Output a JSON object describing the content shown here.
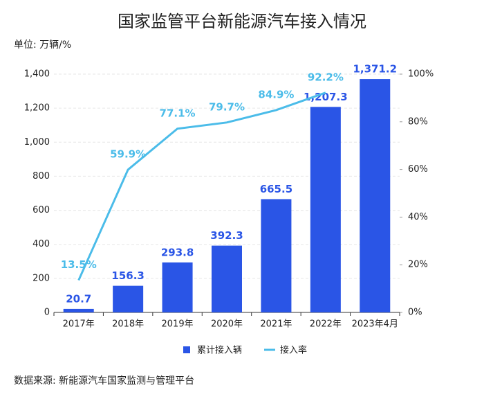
{
  "chart_data": {
    "type": "bar_line",
    "title": "国家监管平台新能源汽车接入情况",
    "unit_label": "单位: 万辆/%",
    "source": "数据来源: 新能源汽车国家监测与管理平台",
    "categories": [
      "2017年",
      "2018年",
      "2019年",
      "2020年",
      "2021年",
      "2022年",
      "2023年4月"
    ],
    "series": [
      {
        "name": "累计接入辆",
        "type": "bar",
        "color": "#2a55e6",
        "values": [
          20.7,
          156.3,
          293.8,
          392.3,
          665.5,
          1207.3,
          1371.2
        ],
        "value_labels": [
          "20.7",
          "156.3",
          "293.8",
          "392.3",
          "665.5",
          "1,207.3",
          "1,371.2"
        ]
      },
      {
        "name": "接入率",
        "type": "line",
        "axis": "y2",
        "color": "#4bbce9",
        "values": [
          13.5,
          59.9,
          77.1,
          79.7,
          84.9,
          92.2,
          null
        ],
        "value_labels": [
          "13.5%",
          "59.9%",
          "77.1%",
          "79.7%",
          "84.9%",
          "92.2%",
          null
        ]
      }
    ],
    "ylim": [
      0,
      1400
    ],
    "yticks": [
      0,
      200,
      400,
      600,
      800,
      {
        "value": 1000,
        "label": "1,000"
      },
      {
        "value": 1200,
        "label": "1,200"
      },
      {
        "value": 1400,
        "label": "1,400"
      }
    ],
    "y2lim": [
      0,
      100
    ],
    "y2ticks": [
      {
        "value": 0,
        "label": "0%"
      },
      {
        "value": 20,
        "label": "20%"
      },
      {
        "value": 40,
        "label": "40%"
      },
      {
        "value": 60,
        "label": "60%"
      },
      {
        "value": 80,
        "label": "80%"
      },
      {
        "value": 100,
        "label": "100%"
      }
    ],
    "grid": true,
    "legend": "bottom"
  }
}
